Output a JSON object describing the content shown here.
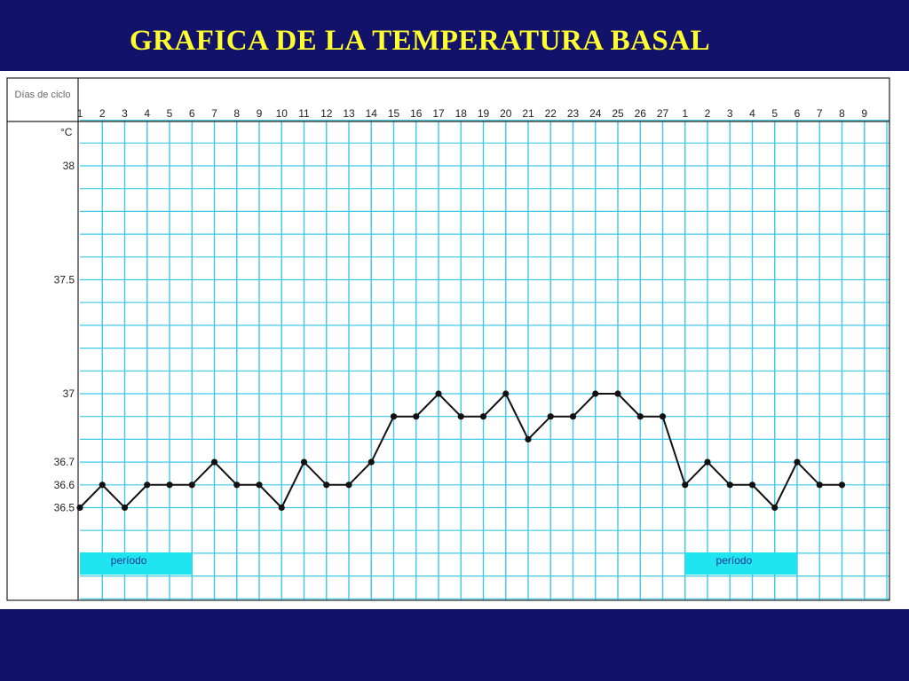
{
  "slide": {
    "title": "GRAFICA DE LA TEMPERATURA BASAL",
    "background": "#12126a",
    "title_color": "#ffff2e"
  },
  "chart_data": {
    "type": "line",
    "header_label": "Días de ciclo",
    "unit_label": "°C",
    "x_tick_labels": [
      "1",
      "2",
      "3",
      "4",
      "5",
      "6",
      "7",
      "8",
      "9",
      "10",
      "11",
      "12",
      "13",
      "14",
      "15",
      "16",
      "17",
      "18",
      "19",
      "20",
      "21",
      "22",
      "23",
      "24",
      "25",
      "26",
      "27",
      "1",
      "2",
      "3",
      "4",
      "5",
      "6",
      "7",
      "8",
      "9"
    ],
    "y_tick_labels": [
      "38",
      "37.5",
      "37",
      "36.7",
      "36.6",
      "36.5"
    ],
    "y_tick_values": [
      38,
      37.5,
      37,
      36.7,
      36.6,
      36.5
    ],
    "ylim": [
      36.3,
      38.2
    ],
    "grid": true,
    "series": [
      {
        "values": [
          36.5,
          36.6,
          36.5,
          36.6,
          36.6,
          36.6,
          36.7,
          36.6,
          36.6,
          36.5,
          36.7,
          36.6,
          36.6,
          36.7,
          36.9,
          36.9,
          37.0,
          36.9,
          36.9,
          37.0,
          36.8,
          36.9,
          36.9,
          37.0,
          37.0,
          36.9,
          36.9,
          36.6,
          36.7,
          36.6,
          36.6,
          36.5,
          36.7,
          36.6,
          36.6
        ]
      }
    ],
    "annotations": [
      {
        "text": "período",
        "from_day_index": 0,
        "to_day_index": 5
      },
      {
        "text": "período",
        "from_day_index": 27,
        "to_day_index": 32
      }
    ],
    "colors": {
      "grid": "#3ec8e8",
      "line": "#111111",
      "period_fill": "#20e4ef",
      "period_text": "#1a3a9a"
    }
  }
}
